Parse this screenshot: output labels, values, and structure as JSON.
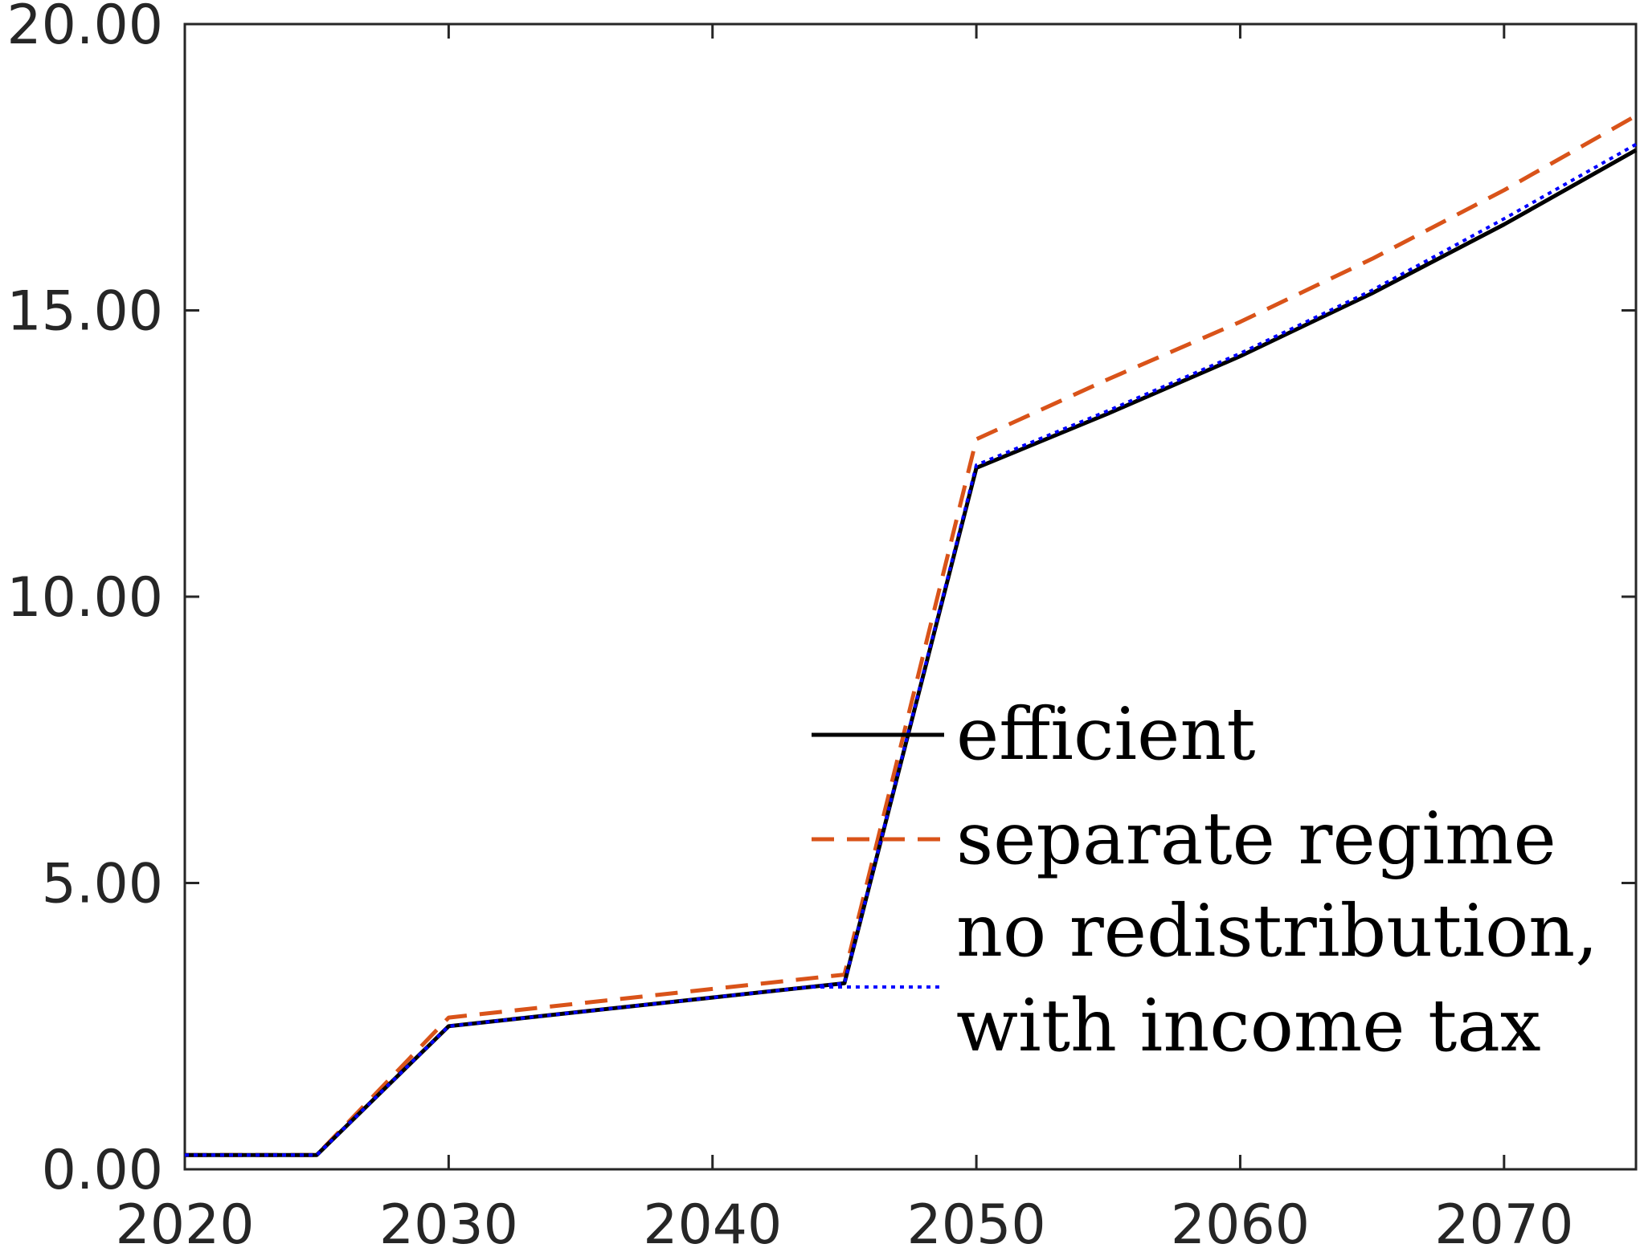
{
  "chart_data": {
    "type": "line",
    "title": "",
    "xlabel": "",
    "ylabel": "",
    "xlim": [
      2020,
      2075
    ],
    "ylim": [
      0,
      20
    ],
    "xticks": [
      2020,
      2030,
      2040,
      2050,
      2060,
      2070
    ],
    "xtick_labels": [
      "2020",
      "2030",
      "2040",
      "2050",
      "2060",
      "2070"
    ],
    "yticks": [
      0,
      5,
      10,
      15,
      20
    ],
    "ytick_labels": [
      "0.00",
      "5.00",
      "10.00",
      "15.00",
      "20.00"
    ],
    "grid": false,
    "legend_position": "center-right",
    "series": [
      {
        "name": "efficient",
        "style": "solid",
        "color": "#000000",
        "x": [
          2020,
          2025,
          2030,
          2035,
          2040,
          2045,
          2050,
          2055,
          2060,
          2065,
          2070,
          2075
        ],
        "y": [
          0.25,
          0.25,
          2.5,
          2.75,
          3.0,
          3.25,
          12.25,
          13.2,
          14.2,
          15.3,
          16.5,
          17.8
        ]
      },
      {
        "name": "separate regime",
        "style": "dashed",
        "color": "#D95319",
        "x": [
          2020,
          2025,
          2030,
          2035,
          2040,
          2045,
          2050,
          2055,
          2060,
          2065,
          2070,
          2075
        ],
        "y": [
          0.25,
          0.25,
          2.65,
          2.9,
          3.15,
          3.4,
          12.75,
          13.8,
          14.8,
          15.9,
          17.1,
          18.4
        ]
      },
      {
        "name": "no redistribution, with income tax",
        "style": "dotted",
        "color": "#0000FF",
        "x": [
          2020,
          2025,
          2030,
          2035,
          2040,
          2045,
          2050,
          2055,
          2060,
          2065,
          2070,
          2075
        ],
        "y": [
          0.25,
          0.25,
          2.5,
          2.75,
          3.0,
          3.25,
          12.3,
          13.25,
          14.25,
          15.35,
          16.6,
          17.9
        ]
      }
    ],
    "legend": {
      "entries": [
        {
          "style": "solid",
          "color": "#000000",
          "lines": [
            "efficient"
          ]
        },
        {
          "style": "dashed",
          "color": "#D95319",
          "lines": [
            "separate regime"
          ]
        },
        {
          "style": "dotted",
          "color": "#0000FF",
          "lines": [
            "no redistribution,",
            "with income tax"
          ]
        }
      ]
    }
  }
}
